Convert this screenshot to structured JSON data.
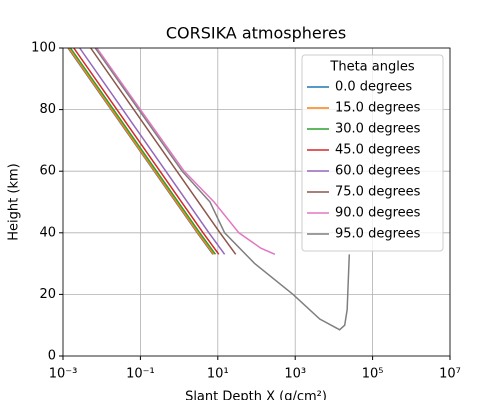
{
  "chart_data": {
    "type": "line",
    "title": "CORSIKA atmospheres",
    "x_label": "Slant Depth X (g/cm²)",
    "y_label": "Height (km)",
    "x_scale": "log",
    "grid": true,
    "legend_title": "Theta angles",
    "legend_position": "upper right",
    "xlim": [
      0.001,
      10000000
    ],
    "ylim": [
      0,
      100
    ],
    "xticks": [
      {
        "value": 0.001,
        "label": "10⁻³"
      },
      {
        "value": 0.1,
        "label": "10⁻¹"
      },
      {
        "value": 10,
        "label": "10¹"
      },
      {
        "value": 1000,
        "label": "10³"
      },
      {
        "value": 100000,
        "label": "10⁵"
      },
      {
        "value": 10000000,
        "label": "10⁷"
      }
    ],
    "yticks": [
      0,
      20,
      40,
      60,
      80,
      100
    ],
    "series": [
      {
        "name": "0.0 degrees",
        "color": "#1f77b4",
        "x": [
          0.00135,
          0.0175,
          0.227,
          2.95,
          7.5
        ],
        "values": [
          100,
          80,
          60,
          40,
          33
        ]
      },
      {
        "name": "15.0 degrees",
        "color": "#ff7f0e",
        "x": [
          0.0014,
          0.0181,
          0.235,
          3.05,
          7.8
        ],
        "values": [
          100,
          80,
          60,
          40,
          33
        ]
      },
      {
        "name": "30.0 degrees",
        "color": "#2ca02c",
        "x": [
          0.00156,
          0.0202,
          0.262,
          3.41,
          8.7
        ],
        "values": [
          100,
          80,
          60,
          40,
          33
        ]
      },
      {
        "name": "45.0 degrees",
        "color": "#d62728",
        "x": [
          0.0019,
          0.0247,
          0.321,
          4.17,
          10.6
        ],
        "values": [
          100,
          80,
          60,
          40,
          33
        ]
      },
      {
        "name": "60.0 degrees",
        "color": "#9467bd",
        "x": [
          0.0027,
          0.035,
          0.454,
          5.9,
          15
        ],
        "values": [
          100,
          80,
          60,
          40,
          33
        ]
      },
      {
        "name": "75.0 degrees",
        "color": "#8c564b",
        "x": [
          0.0052,
          0.0675,
          0.876,
          11.4,
          29
        ],
        "values": [
          100,
          80,
          60,
          40,
          33
        ]
      },
      {
        "name": "90.0 degrees",
        "color": "#e377c2",
        "x": [
          0.0075,
          0.1,
          1.35,
          8,
          35,
          130,
          300
        ],
        "values": [
          100,
          80,
          60,
          50,
          40,
          35,
          33
        ]
      },
      {
        "name": "95.0 degrees",
        "color": "#7f7f7f",
        "x": [
          0.0068,
          0.09,
          1.2,
          6.3,
          15,
          90,
          880,
          4300,
          12000,
          14000,
          19000,
          22000,
          25000
        ],
        "values": [
          100,
          80,
          60,
          50,
          40,
          30,
          20,
          12,
          9,
          8.5,
          10,
          15,
          33
        ]
      }
    ]
  }
}
